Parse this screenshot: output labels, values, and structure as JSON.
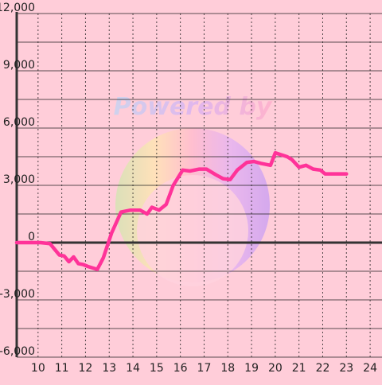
{
  "chart_data": {
    "type": "line",
    "x_ticks": [
      "10",
      "11",
      "12",
      "13",
      "14",
      "15",
      "16",
      "17",
      "18",
      "19",
      "20",
      "21",
      "22",
      "23",
      "24"
    ],
    "y_ticks": [
      "12,000",
      "9,000",
      "6,000",
      "3,000",
      "0",
      "-3,000",
      "-6,000"
    ],
    "xlim": [
      9.1,
      24.5
    ],
    "ylim": [
      -6000,
      12000
    ],
    "grid": true,
    "watermark": "Powered by",
    "colors": {
      "background": "#ffcdd9",
      "line": "#ff3399",
      "grid": "#222222",
      "zero_line": "#333333"
    },
    "series": [
      {
        "x": [
          9.1,
          10.1,
          10.5,
          10.9,
          11.1,
          11.3,
          11.5,
          11.7,
          11.9,
          12.1,
          12.5,
          12.75,
          13.1,
          13.5,
          13.9,
          14.3,
          14.6,
          14.8,
          15.1,
          15.4,
          15.7,
          16.1,
          16.4,
          16.8,
          17.1,
          17.5,
          17.8,
          18.1,
          18.4,
          18.8,
          19.1,
          19.4,
          19.8,
          20.0,
          20.5,
          20.7,
          21.0,
          21.3,
          21.6,
          21.9,
          22.1,
          22.4,
          22.7,
          23.0
        ],
        "y": [
          0,
          0,
          -50,
          -650,
          -700,
          -1000,
          -750,
          -1100,
          -1150,
          -1250,
          -1400,
          -800,
          500,
          1600,
          1700,
          1700,
          1500,
          1850,
          1700,
          2000,
          3000,
          3800,
          3750,
          3850,
          3850,
          3550,
          3350,
          3300,
          3800,
          4200,
          4250,
          4150,
          4050,
          4700,
          4500,
          4350,
          3950,
          4050,
          3850,
          3800,
          3600,
          3600,
          3600,
          3600
        ]
      }
    ]
  }
}
